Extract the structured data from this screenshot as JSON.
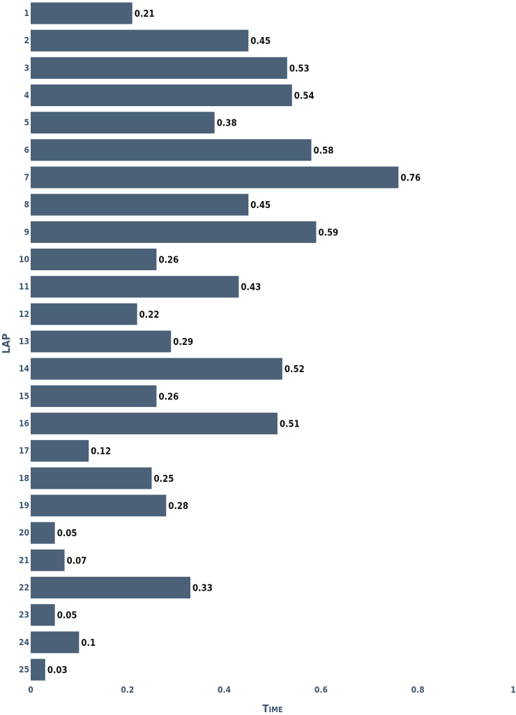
{
  "chart_data": {
    "type": "bar",
    "orientation": "horizontal",
    "categories": [
      "1",
      "2",
      "3",
      "4",
      "5",
      "6",
      "7",
      "8",
      "9",
      "10",
      "11",
      "12",
      "13",
      "14",
      "15",
      "16",
      "17",
      "18",
      "19",
      "20",
      "21",
      "22",
      "23",
      "24",
      "25"
    ],
    "values": [
      0.21,
      0.45,
      0.53,
      0.54,
      0.38,
      0.58,
      0.76,
      0.45,
      0.59,
      0.26,
      0.43,
      0.22,
      0.29,
      0.52,
      0.26,
      0.51,
      0.12,
      0.25,
      0.28,
      0.05,
      0.07,
      0.33,
      0.05,
      0.1,
      0.03
    ],
    "value_labels": [
      "0.21",
      "0.45",
      "0.53",
      "0.54",
      "0.38",
      "0.58",
      "0.76",
      "0.45",
      "0.59",
      "0.26",
      "0.43",
      "0.22",
      "0.29",
      "0.52",
      "0.26",
      "0.51",
      "0.12",
      "0.25",
      "0.28",
      "0.05",
      "0.07",
      "0.33",
      "0.05",
      "0.1",
      "0.03"
    ],
    "x_ticks": [
      0,
      0.2,
      0.4,
      0.6,
      0.8,
      1
    ],
    "x_tick_labels": [
      "0",
      "0.2",
      "0.4",
      "0.6",
      "0.8",
      "1"
    ],
    "xlabel": "Time",
    "ylabel": "LAP",
    "xlim": [
      0,
      1
    ],
    "bar_color": "#4a6178",
    "grid": false,
    "legend": "none"
  }
}
